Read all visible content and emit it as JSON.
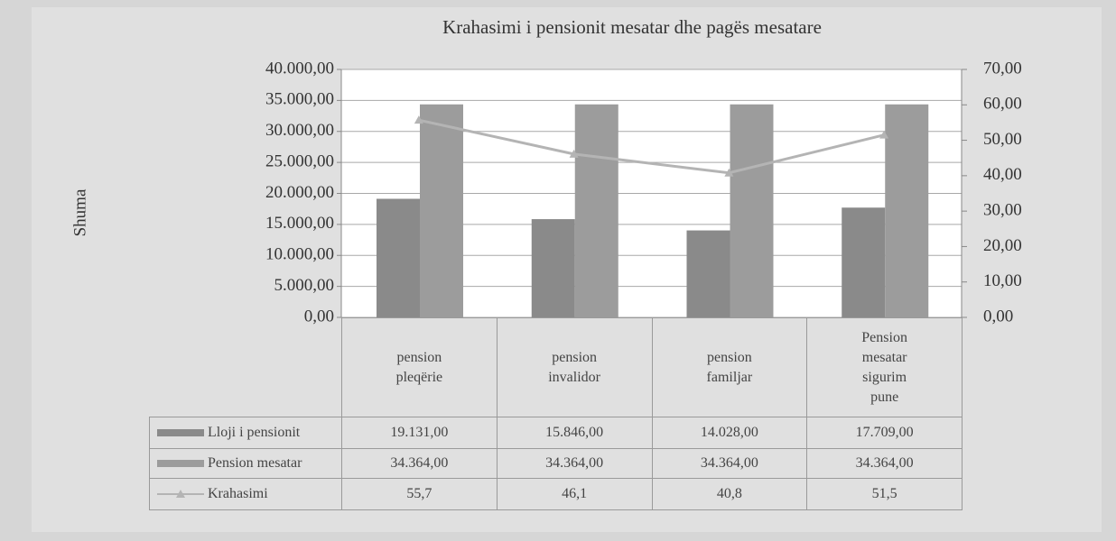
{
  "chart_data": {
    "type": "bar",
    "title": "Krahasimi i pensionit mesatar dhe pagës mesatare",
    "ylabel": "Shuma",
    "categories": [
      "pension pleqërie",
      "pension invalidor",
      "pension familjar",
      "Pension mesatar sigurim pune"
    ],
    "series": [
      {
        "name": "Lloji i pensionit",
        "type": "bar",
        "color": "#8a8a8a",
        "values": [
          19131,
          15846,
          14028,
          17709
        ],
        "value_labels": [
          "19.131,00",
          "15.846,00",
          "14.028,00",
          "17.709,00"
        ]
      },
      {
        "name": "Pension mesatar",
        "type": "bar",
        "color": "#9c9c9c",
        "values": [
          34364,
          34364,
          34364,
          34364
        ],
        "value_labels": [
          "34.364,00",
          "34.364,00",
          "34.364,00",
          "34.364,00"
        ]
      },
      {
        "name": "Krahasimi",
        "type": "line",
        "axis": "y2",
        "color": "#b4b4b4",
        "values": [
          55.7,
          46.1,
          40.8,
          51.5
        ],
        "value_labels": [
          "55,7",
          "46,1",
          "40,8",
          "51,5"
        ]
      }
    ],
    "ylim": [
      0,
      40000
    ],
    "yticks": [
      {
        "value": 0,
        "label": "0,00"
      },
      {
        "value": 5000,
        "label": "5.000,00"
      },
      {
        "value": 10000,
        "label": "10.000,00"
      },
      {
        "value": 15000,
        "label": "15.000,00"
      },
      {
        "value": 20000,
        "label": "20.000,00"
      },
      {
        "value": 25000,
        "label": "25.000,00"
      },
      {
        "value": 30000,
        "label": "30.000,00"
      },
      {
        "value": 35000,
        "label": "35.000,00"
      },
      {
        "value": 40000,
        "label": "40.000,00"
      }
    ],
    "y2lim": [
      0,
      70
    ],
    "y2ticks": [
      {
        "value": 0,
        "label": "0,00"
      },
      {
        "value": 10,
        "label": "10,00"
      },
      {
        "value": 20,
        "label": "20,00"
      },
      {
        "value": 30,
        "label": "30,00"
      },
      {
        "value": 40,
        "label": "40,00"
      },
      {
        "value": 50,
        "label": "50,00"
      },
      {
        "value": 60,
        "label": "60,00"
      },
      {
        "value": 70,
        "label": "70,00"
      }
    ],
    "grid": true
  }
}
